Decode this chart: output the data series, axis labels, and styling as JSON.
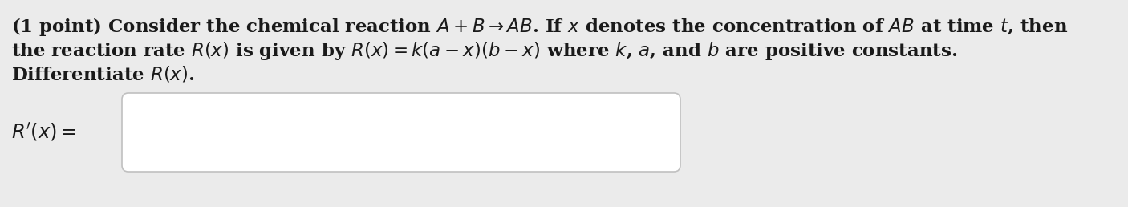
{
  "background_color": "#ebebeb",
  "text_color": "#1a1a1a",
  "line1": "(1 point) Consider the chemical reaction $A + B \\rightarrow AB$. If $x$ denotes the concentration of $AB$ at time $t$, then",
  "line2": "the reaction rate $R(x)$ is given by $R(x) = k(a - x)(b - x)$ where $k$, $a$, and $b$ are positive constants.",
  "line3": "Differentiate $R(x)$.",
  "label": "$R'(x) =$",
  "font_size": 16.5,
  "fig_width": 14.06,
  "fig_height": 2.58,
  "dpi": 100,
  "box_facecolor": "#ffffff",
  "box_edgecolor": "#c0c0c0"
}
